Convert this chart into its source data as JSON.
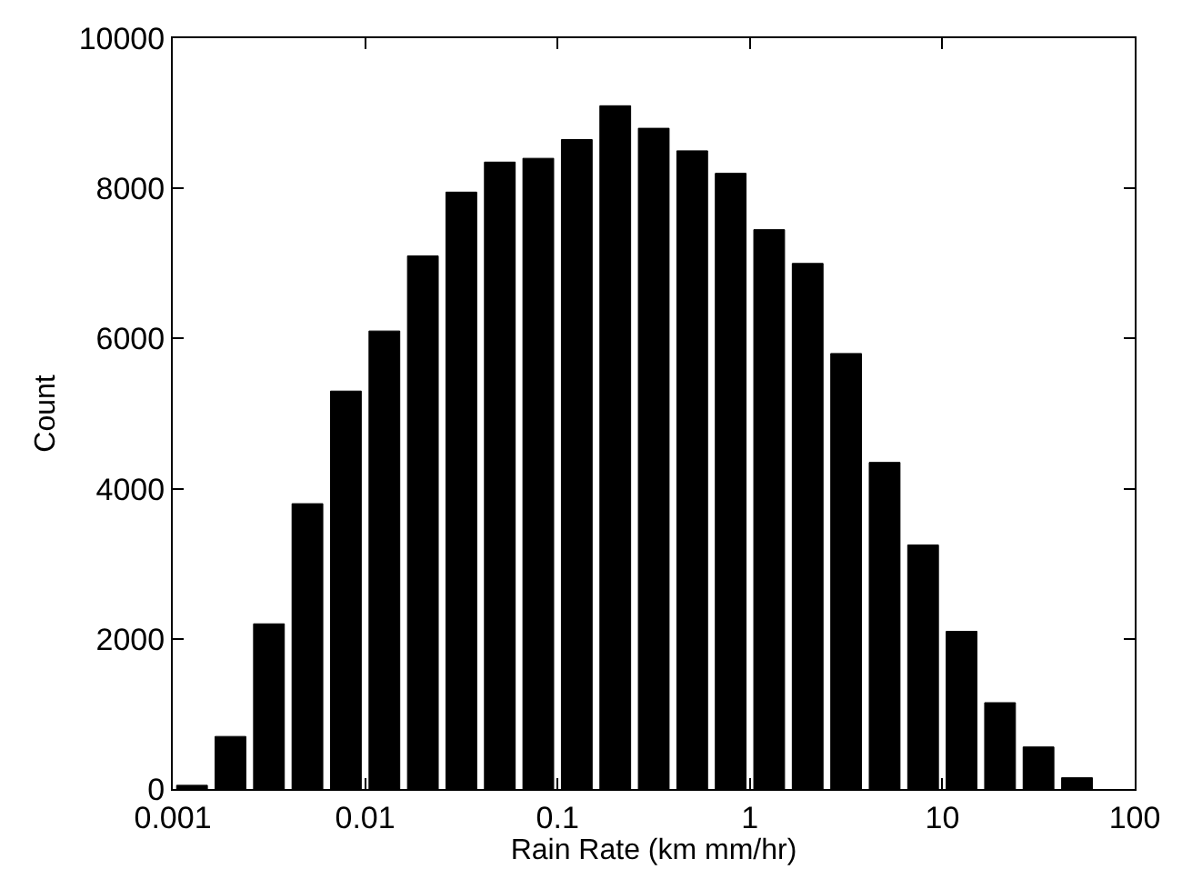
{
  "chart_data": {
    "type": "histogram",
    "xlabel": "Rain Rate (km mm/hr)",
    "ylabel": "Count",
    "log": "x",
    "color": "#000000",
    "grid": false,
    "bins": [
      0.001,
      0.001585,
      0.002512,
      0.003981,
      0.00631,
      0.01,
      0.01585,
      0.02512,
      0.03981,
      0.0631,
      0.1,
      0.1585,
      0.2512,
      0.3981,
      0.631,
      1,
      1.585,
      2.512,
      3.981,
      6.31,
      10,
      15.85,
      25.12,
      39.81,
      63.1
    ],
    "values": [
      50,
      700,
      2200,
      3800,
      5300,
      6100,
      7100,
      7950,
      8350,
      8400,
      8650,
      9100,
      8800,
      8500,
      8200,
      7450,
      7000,
      5800,
      4350,
      3250,
      2100,
      1150,
      560,
      150
    ],
    "xlim": [
      0.001,
      100
    ],
    "ylim": [
      0,
      10000
    ],
    "xticks": [
      0.001,
      0.01,
      0.1,
      1,
      10,
      100
    ],
    "yticks": [
      0,
      2000,
      4000,
      6000,
      8000,
      10000
    ]
  }
}
